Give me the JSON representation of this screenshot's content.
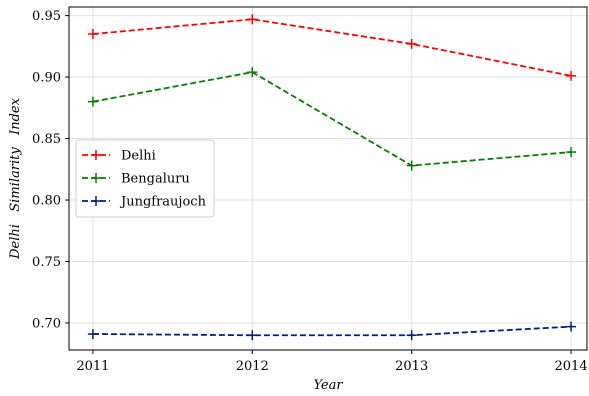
{
  "chart_data": {
    "type": "line",
    "title": "",
    "xlabel": "Year",
    "ylabel": "Delhi   Similarity   Index",
    "x": [
      2011,
      2012,
      2013,
      2014
    ],
    "x_tick_labels": [
      "2011",
      "2012",
      "2013",
      "2014"
    ],
    "xlim": [
      2010.85,
      2014.1
    ],
    "ylim": [
      0.678,
      0.957
    ],
    "y_ticks": [
      0.7,
      0.75,
      0.8,
      0.85,
      0.9,
      0.95
    ],
    "y_tick_labels": [
      "0.70",
      "0.75",
      "0.80",
      "0.85",
      "0.90",
      "0.95"
    ],
    "grid": true,
    "legend_position": "center-left",
    "series": [
      {
        "name": "Delhi",
        "color": "#ff0000",
        "values": [
          0.935,
          0.947,
          0.927,
          0.901
        ]
      },
      {
        "name": "Bengaluru",
        "color": "#008000",
        "values": [
          0.88,
          0.904,
          0.828,
          0.839
        ]
      },
      {
        "name": "Jungfraujoch",
        "color": "#00207f",
        "values": [
          0.691,
          0.69,
          0.69,
          0.697
        ]
      }
    ]
  }
}
